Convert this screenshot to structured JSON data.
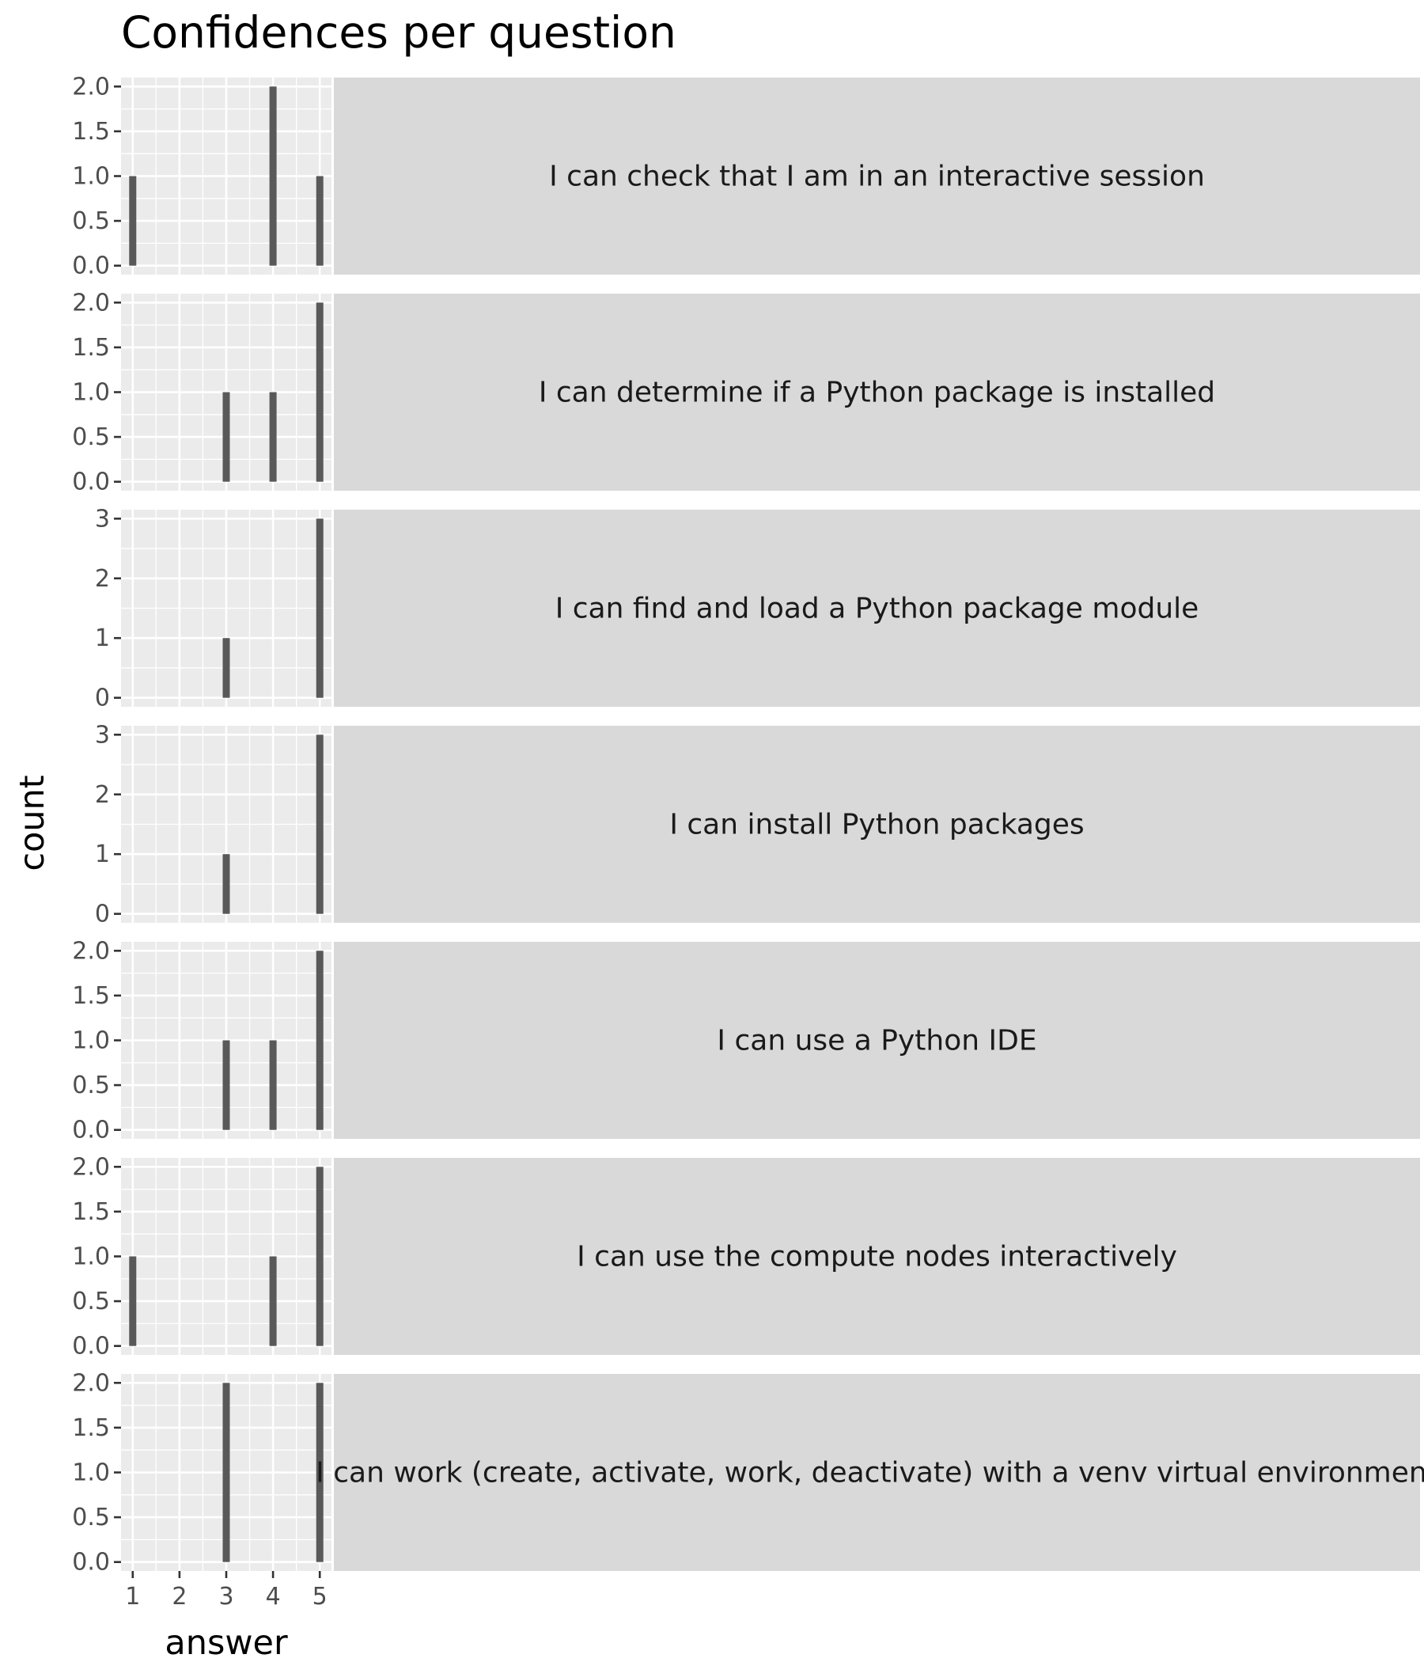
{
  "chart_data": {
    "type": "bar",
    "layout": "faceted",
    "title": "Confidences per question",
    "xlabel": "answer",
    "ylabel": "count",
    "x_ticks": [
      1,
      2,
      3,
      4,
      5
    ],
    "xlim": [
      0.75,
      5.25
    ],
    "grid": true,
    "facets": [
      {
        "label": "I can check that I am in an interactive session",
        "ylim": [
          0,
          2
        ],
        "y_ticks": [
          "0.0",
          "0.5",
          "1.0",
          "1.5",
          "2.0"
        ],
        "bars": [
          {
            "x": 1,
            "count": 1
          },
          {
            "x": 4,
            "count": 2
          },
          {
            "x": 5,
            "count": 1
          }
        ]
      },
      {
        "label": "I can determine if a Python package is installed",
        "ylim": [
          0,
          2
        ],
        "y_ticks": [
          "0.0",
          "0.5",
          "1.0",
          "1.5",
          "2.0"
        ],
        "bars": [
          {
            "x": 3,
            "count": 1
          },
          {
            "x": 4,
            "count": 1
          },
          {
            "x": 5,
            "count": 2
          }
        ]
      },
      {
        "label": "I can find and load a Python package module",
        "ylim": [
          0,
          3
        ],
        "y_ticks": [
          "0",
          "1",
          "2",
          "3"
        ],
        "bars": [
          {
            "x": 3,
            "count": 1
          },
          {
            "x": 5,
            "count": 3
          }
        ]
      },
      {
        "label": "I can install Python packages",
        "ylim": [
          0,
          3
        ],
        "y_ticks": [
          "0",
          "1",
          "2",
          "3"
        ],
        "bars": [
          {
            "x": 3,
            "count": 1
          },
          {
            "x": 5,
            "count": 3
          }
        ]
      },
      {
        "label": "I can use a Python IDE",
        "ylim": [
          0,
          2
        ],
        "y_ticks": [
          "0.0",
          "0.5",
          "1.0",
          "1.5",
          "2.0"
        ],
        "bars": [
          {
            "x": 3,
            "count": 1
          },
          {
            "x": 4,
            "count": 1
          },
          {
            "x": 5,
            "count": 2
          }
        ]
      },
      {
        "label": "I can use the compute nodes interactively",
        "ylim": [
          0,
          2
        ],
        "y_ticks": [
          "0.0",
          "0.5",
          "1.0",
          "1.5",
          "2.0"
        ],
        "bars": [
          {
            "x": 1,
            "count": 1
          },
          {
            "x": 4,
            "count": 1
          },
          {
            "x": 5,
            "count": 2
          }
        ]
      },
      {
        "label": "I can work (create, activate, work, deactivate) with a venv virtual environment",
        "ylim": [
          0,
          2
        ],
        "y_ticks": [
          "0.0",
          "0.5",
          "1.0",
          "1.5",
          "2.0"
        ],
        "bars": [
          {
            "x": 3,
            "count": 2
          },
          {
            "x": 5,
            "count": 2
          }
        ]
      }
    ],
    "colors": {
      "panel_background": "#ebebeb",
      "grid": "#ffffff",
      "bar": "#595959",
      "strip_background": "#d9d9d9",
      "tick": "#333333",
      "tick_label": "#4d4d4d"
    }
  }
}
